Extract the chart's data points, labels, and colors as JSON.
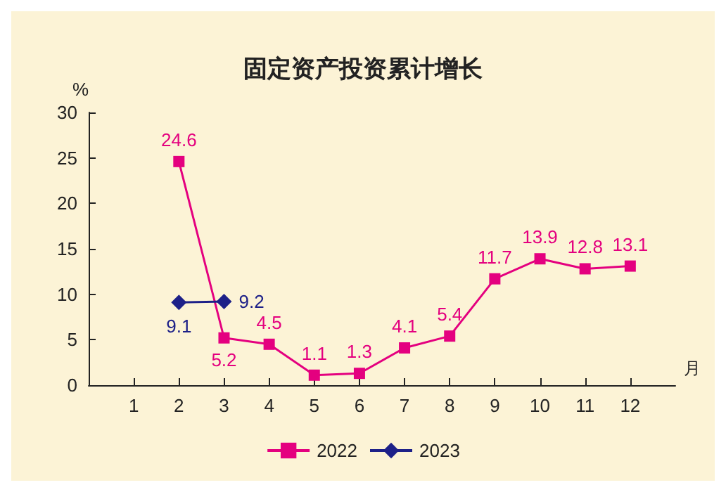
{
  "chart_data": {
    "type": "line",
    "title": "固定资产投资累计增长",
    "ylabel": "%",
    "xlabel": "月",
    "xlim": [
      0,
      13
    ],
    "xticks": [
      1,
      2,
      3,
      4,
      5,
      6,
      7,
      8,
      9,
      10,
      11,
      12
    ],
    "ylim": [
      0,
      30
    ],
    "yticks": [
      0,
      5,
      10,
      15,
      20,
      25,
      30
    ],
    "series": [
      {
        "name": "2022",
        "color": "#e4007f",
        "marker": "square",
        "x": [
          2,
          3,
          4,
          5,
          6,
          7,
          8,
          9,
          10,
          11,
          12
        ],
        "values": [
          24.6,
          5.2,
          4.5,
          1.1,
          1.3,
          4.1,
          5.4,
          11.7,
          13.9,
          12.8,
          13.1
        ]
      },
      {
        "name": "2023",
        "color": "#1d2088",
        "marker": "diamond",
        "x": [
          2,
          3
        ],
        "values": [
          9.1,
          9.2
        ]
      }
    ],
    "data_labels": true,
    "grid": false,
    "legend": "bottom"
  }
}
